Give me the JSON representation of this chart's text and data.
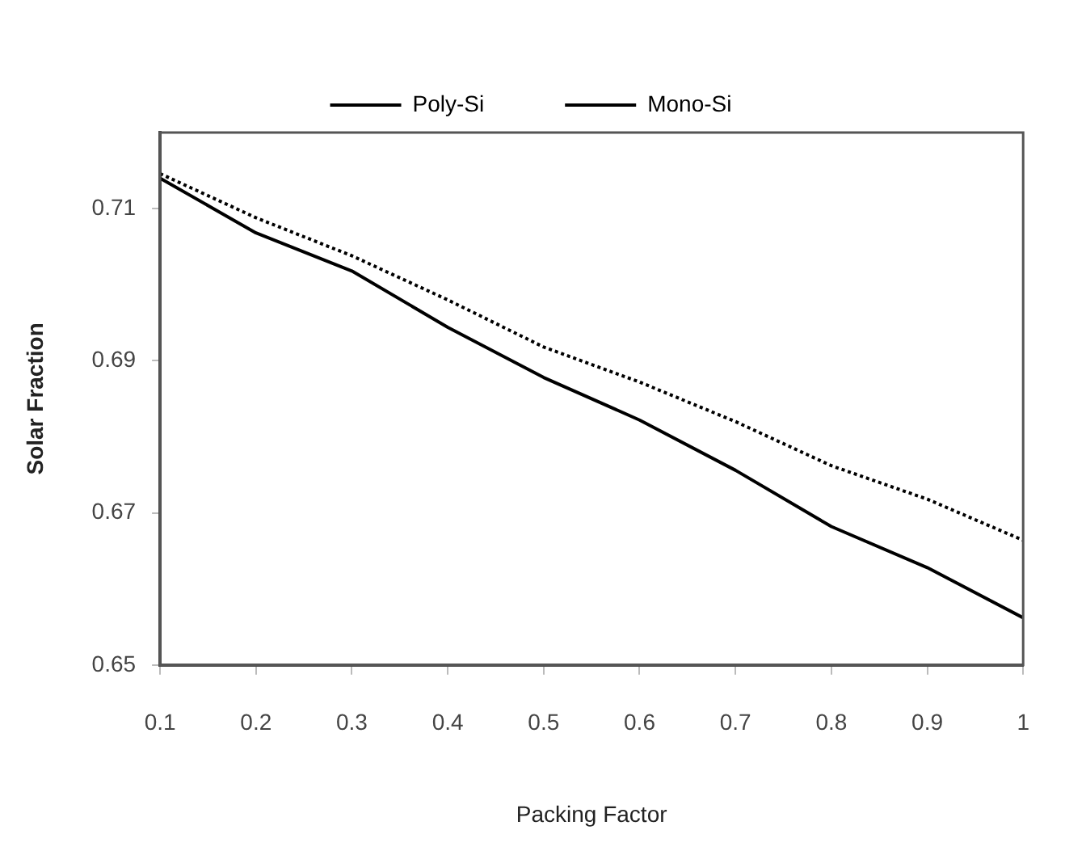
{
  "chart_data": {
    "type": "line",
    "xlabel": "Packing Factor",
    "ylabel": "Solar Fraction",
    "x": [
      0.1,
      0.2,
      0.3,
      0.4,
      0.5,
      0.6,
      0.7,
      0.8,
      0.9,
      1
    ],
    "series": [
      {
        "name": "Poly-Si",
        "color": "#000000",
        "line_style": "dotted",
        "values": [
          0.7146,
          0.7088,
          0.7038,
          0.698,
          0.6918,
          0.6872,
          0.682,
          0.6762,
          0.6718,
          0.6664
        ]
      },
      {
        "name": "Mono-Si",
        "color": "#000000",
        "line_style": "solid",
        "values": [
          0.714,
          0.7068,
          0.7018,
          0.6944,
          0.6878,
          0.6822,
          0.6756,
          0.6682,
          0.6628,
          0.6562
        ]
      }
    ],
    "xlim": [
      0.1,
      1
    ],
    "xticks": [
      {
        "value": 0.1,
        "label": "0.1"
      },
      {
        "value": 0.2,
        "label": "0.2"
      },
      {
        "value": 0.3,
        "label": "0.3"
      },
      {
        "value": 0.4,
        "label": "0.4"
      },
      {
        "value": 0.5,
        "label": "0.5"
      },
      {
        "value": 0.6,
        "label": "0.6"
      },
      {
        "value": 0.7,
        "label": "0.7"
      },
      {
        "value": 0.8,
        "label": "0.8"
      },
      {
        "value": 0.9,
        "label": "0.9"
      },
      1
    ],
    "ylim": [
      0.65,
      0.72
    ],
    "yticks": [
      0.65,
      0.67,
      0.69,
      0.71
    ],
    "grid": false,
    "legend": "top",
    "marker": "none"
  }
}
